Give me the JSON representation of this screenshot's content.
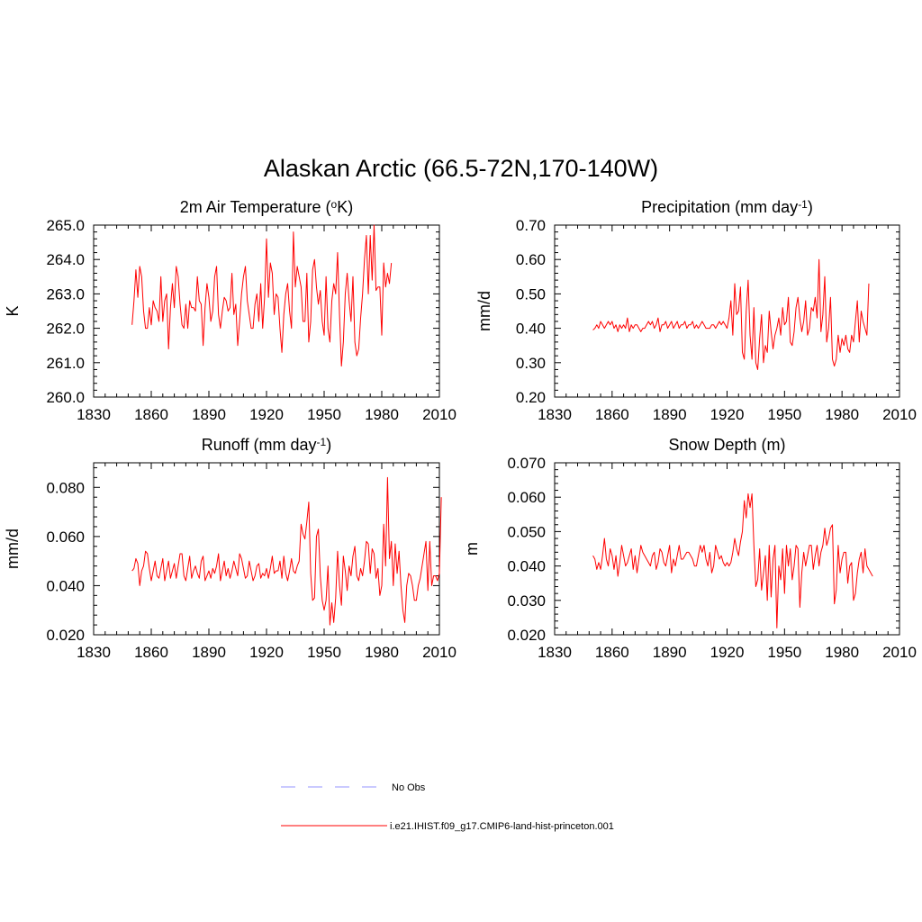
{
  "figure": {
    "title": "Alaskan Arctic (66.5-72N,170-140W)"
  },
  "legend": {
    "items": [
      {
        "label": "No Obs",
        "color": "#aaaaff",
        "style": "dashed"
      },
      {
        "label": "i.e21.IHIST.f09_g17.CMIP6-land-hist-princeton.001",
        "color": "#ff0000",
        "style": "solid"
      }
    ]
  },
  "colors": {
    "model_line": "#ff0000",
    "obs_line": "#aaaaff",
    "axes": "#000000"
  },
  "chart_data": [
    {
      "type": "line",
      "title": "2m Air Temperature (oK)",
      "title_parts": [
        "2m Air Temperature (",
        "o",
        "K)"
      ],
      "ylabel": "K",
      "xlim": [
        1830,
        2010
      ],
      "ylim": [
        260,
        265
      ],
      "xticks": [
        1830,
        1860,
        1890,
        1920,
        1950,
        1980,
        2010
      ],
      "yticks": [
        "260.0",
        "261.0",
        "262.0",
        "263.0",
        "264.0",
        "265.0"
      ],
      "x_start": 1850,
      "series": [
        {
          "name": "i.e21.IHIST.f09_g17.CMIP6-land-hist-princeton.001",
          "values": [
            262.1,
            262.8,
            263.7,
            262.9,
            263.8,
            263.5,
            262.5,
            262.0,
            262.0,
            262.6,
            262.1,
            262.8,
            262.6,
            262.5,
            262.2,
            263.5,
            262.2,
            262.8,
            263.0,
            261.4,
            262.6,
            263.3,
            262.6,
            263.8,
            263.5,
            262.7,
            262.1,
            262.0,
            262.7,
            262.0,
            262.8,
            262.6,
            262.6,
            262.5,
            263.5,
            262.8,
            262.7,
            261.5,
            262.6,
            263.3,
            262.9,
            262.2,
            262.5,
            263.5,
            263.8,
            262.4,
            262.0,
            262.5,
            262.9,
            262.8,
            262.5,
            262.6,
            263.6,
            262.4,
            262.7,
            261.5,
            262.2,
            263.0,
            263.5,
            263.8,
            262.8,
            262.4,
            262.0,
            262.0,
            262.7,
            263.0,
            262.2,
            263.3,
            262.0,
            262.9,
            264.6,
            262.9,
            263.9,
            263.6,
            262.4,
            263.0,
            262.9,
            262.0,
            261.3,
            262.4,
            263.0,
            263.3,
            262.5,
            262.0,
            264.8,
            263.2,
            263.8,
            263.5,
            263.2,
            262.2,
            262.2,
            263.6,
            261.6,
            262.2,
            263.7,
            264.0,
            263.2,
            262.7,
            263.1,
            262.2,
            261.8,
            263.5,
            262.0,
            261.6,
            262.8,
            263.3,
            263.0,
            264.2,
            262.4,
            260.9,
            261.6,
            263.0,
            263.6,
            262.8,
            262.2,
            263.5,
            261.6,
            261.2,
            261.4,
            262.3,
            263.0,
            264.0,
            264.7,
            263.0,
            264.7,
            263.4,
            265.0,
            263.1,
            263.2,
            263.2,
            261.8,
            263.9,
            263.2,
            263.6,
            263.3,
            263.9
          ]
        }
      ]
    },
    {
      "type": "line",
      "title": "Precipitation (mm day-1)",
      "title_parts": [
        "Precipitation (mm day",
        "-1",
        ")"
      ],
      "ylabel": "mm/d",
      "xlim": [
        1830,
        2010
      ],
      "ylim": [
        0.2,
        0.7
      ],
      "xticks": [
        1830,
        1860,
        1890,
        1920,
        1950,
        1980,
        2010
      ],
      "yticks": [
        "0.20",
        "0.30",
        "0.40",
        "0.50",
        "0.60",
        "0.70"
      ],
      "x_start": 1850,
      "series": [
        {
          "name": "i.e21.IHIST.f09_g17.CMIP6-land-hist-princeton.001",
          "values": [
            0.395,
            0.4,
            0.41,
            0.4,
            0.42,
            0.41,
            0.4,
            0.41,
            0.42,
            0.41,
            0.42,
            0.4,
            0.41,
            0.39,
            0.41,
            0.4,
            0.41,
            0.4,
            0.43,
            0.39,
            0.41,
            0.4,
            0.41,
            0.41,
            0.4,
            0.39,
            0.4,
            0.4,
            0.41,
            0.42,
            0.41,
            0.42,
            0.4,
            0.41,
            0.43,
            0.39,
            0.41,
            0.41,
            0.42,
            0.4,
            0.41,
            0.42,
            0.4,
            0.41,
            0.42,
            0.4,
            0.41,
            0.41,
            0.42,
            0.4,
            0.41,
            0.41,
            0.42,
            0.4,
            0.41,
            0.4,
            0.41,
            0.42,
            0.41,
            0.4,
            0.4,
            0.4,
            0.41,
            0.41,
            0.4,
            0.41,
            0.42,
            0.41,
            0.42,
            0.41,
            0.4,
            0.43,
            0.48,
            0.38,
            0.53,
            0.44,
            0.45,
            0.52,
            0.33,
            0.31,
            0.45,
            0.54,
            0.38,
            0.31,
            0.46,
            0.3,
            0.28,
            0.37,
            0.44,
            0.3,
            0.35,
            0.33,
            0.45,
            0.39,
            0.34,
            0.38,
            0.4,
            0.43,
            0.38,
            0.46,
            0.41,
            0.42,
            0.49,
            0.36,
            0.35,
            0.39,
            0.46,
            0.49,
            0.43,
            0.39,
            0.42,
            0.48,
            0.38,
            0.4,
            0.46,
            0.45,
            0.49,
            0.43,
            0.6,
            0.39,
            0.44,
            0.55,
            0.36,
            0.4,
            0.49,
            0.31,
            0.29,
            0.31,
            0.38,
            0.33,
            0.37,
            0.35,
            0.38,
            0.34,
            0.33,
            0.38,
            0.36,
            0.42,
            0.48,
            0.36,
            0.45,
            0.42,
            0.4,
            0.38,
            0.53
          ]
        }
      ]
    },
    {
      "type": "line",
      "title": "Runoff (mm day-1)",
      "title_parts": [
        "Runoff (mm day",
        "-1",
        ")"
      ],
      "ylabel": "mm/d",
      "xlim": [
        1830,
        2010
      ],
      "ylim": [
        0.02,
        0.09
      ],
      "xticks": [
        1830,
        1860,
        1890,
        1920,
        1950,
        1980,
        2010
      ],
      "yticks": [
        "0.020",
        "0.040",
        "0.060",
        "0.080"
      ],
      "x_start": 1850,
      "series": [
        {
          "name": "i.e21.IHIST.f09_g17.CMIP6-land-hist-princeton.001",
          "values": [
            0.046,
            0.047,
            0.051,
            0.049,
            0.04,
            0.046,
            0.048,
            0.054,
            0.053,
            0.047,
            0.042,
            0.046,
            0.05,
            0.044,
            0.043,
            0.047,
            0.051,
            0.042,
            0.046,
            0.05,
            0.043,
            0.046,
            0.049,
            0.043,
            0.048,
            0.053,
            0.053,
            0.044,
            0.042,
            0.047,
            0.052,
            0.043,
            0.046,
            0.048,
            0.045,
            0.043,
            0.05,
            0.052,
            0.042,
            0.044,
            0.046,
            0.043,
            0.047,
            0.045,
            0.048,
            0.053,
            0.042,
            0.046,
            0.05,
            0.044,
            0.047,
            0.043,
            0.046,
            0.05,
            0.047,
            0.044,
            0.053,
            0.051,
            0.047,
            0.043,
            0.044,
            0.05,
            0.046,
            0.042,
            0.044,
            0.048,
            0.049,
            0.043,
            0.045,
            0.044,
            0.047,
            0.043,
            0.047,
            0.052,
            0.045,
            0.046,
            0.046,
            0.05,
            0.043,
            0.052,
            0.045,
            0.042,
            0.046,
            0.051,
            0.046,
            0.045,
            0.048,
            0.05,
            0.065,
            0.061,
            0.059,
            0.066,
            0.074,
            0.045,
            0.034,
            0.035,
            0.06,
            0.063,
            0.044,
            0.034,
            0.03,
            0.034,
            0.048,
            0.024,
            0.033,
            0.025,
            0.035,
            0.054,
            0.04,
            0.032,
            0.052,
            0.046,
            0.038,
            0.048,
            0.044,
            0.052,
            0.056,
            0.044,
            0.042,
            0.047,
            0.044,
            0.05,
            0.058,
            0.057,
            0.045,
            0.055,
            0.053,
            0.043,
            0.047,
            0.036,
            0.04,
            0.065,
            0.048,
            0.084,
            0.051,
            0.058,
            0.04,
            0.057,
            0.045,
            0.054,
            0.04,
            0.03,
            0.025,
            0.04,
            0.045,
            0.044,
            0.04,
            0.034,
            0.034,
            0.04,
            0.043,
            0.048,
            0.053,
            0.058,
            0.038,
            0.058,
            0.04,
            0.044,
            0.044,
            0.042,
            0.045,
            0.076
          ]
        }
      ]
    },
    {
      "type": "line",
      "title": "Snow Depth (m)",
      "title_parts": [
        "Snow Depth (m)"
      ],
      "ylabel": "m",
      "xlim": [
        1830,
        2010
      ],
      "ylim": [
        0.02,
        0.07
      ],
      "xticks": [
        1830,
        1860,
        1890,
        1920,
        1950,
        1980,
        2010
      ],
      "yticks": [
        "0.020",
        "0.030",
        "0.040",
        "0.050",
        "0.060",
        "0.070"
      ],
      "x_start": 1850,
      "series": [
        {
          "name": "i.e21.IHIST.f09_g17.CMIP6-land-hist-princeton.001",
          "values": [
            0.043,
            0.042,
            0.039,
            0.041,
            0.039,
            0.043,
            0.048,
            0.042,
            0.04,
            0.045,
            0.043,
            0.039,
            0.043,
            0.037,
            0.041,
            0.046,
            0.043,
            0.04,
            0.041,
            0.043,
            0.045,
            0.039,
            0.043,
            0.038,
            0.042,
            0.046,
            0.044,
            0.043,
            0.042,
            0.041,
            0.04,
            0.043,
            0.044,
            0.039,
            0.041,
            0.045,
            0.044,
            0.041,
            0.04,
            0.043,
            0.046,
            0.038,
            0.042,
            0.04,
            0.043,
            0.046,
            0.042,
            0.042,
            0.043,
            0.044,
            0.044,
            0.043,
            0.042,
            0.04,
            0.04,
            0.043,
            0.046,
            0.044,
            0.046,
            0.042,
            0.04,
            0.044,
            0.038,
            0.04,
            0.046,
            0.044,
            0.042,
            0.043,
            0.041,
            0.04,
            0.041,
            0.04,
            0.041,
            0.044,
            0.048,
            0.045,
            0.043,
            0.047,
            0.05,
            0.059,
            0.054,
            0.061,
            0.057,
            0.061,
            0.046,
            0.034,
            0.036,
            0.045,
            0.033,
            0.038,
            0.043,
            0.03,
            0.046,
            0.031,
            0.042,
            0.046,
            0.022,
            0.04,
            0.036,
            0.045,
            0.032,
            0.046,
            0.04,
            0.045,
            0.036,
            0.04,
            0.046,
            0.045,
            0.028,
            0.038,
            0.044,
            0.04,
            0.043,
            0.046,
            0.046,
            0.039,
            0.043,
            0.046,
            0.04,
            0.044,
            0.046,
            0.051,
            0.046,
            0.048,
            0.051,
            0.052,
            0.029,
            0.033,
            0.046,
            0.038,
            0.042,
            0.044,
            0.044,
            0.035,
            0.04,
            0.041,
            0.03,
            0.032,
            0.038,
            0.042,
            0.044,
            0.038,
            0.045,
            0.04,
            0.039,
            0.038,
            0.037
          ]
        }
      ]
    }
  ]
}
